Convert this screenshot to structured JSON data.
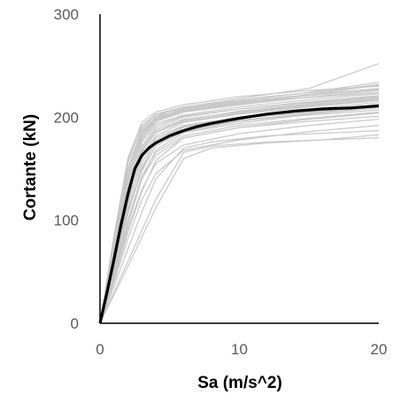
{
  "chart_data": {
    "type": "line",
    "title": "",
    "xlabel": "Sa (m/s^2)",
    "ylabel": "Cortante (kN)",
    "xlim": [
      0,
      20
    ],
    "ylim": [
      0,
      300
    ],
    "xticks": [
      "0",
      "10",
      "20"
    ],
    "yticks": [
      "0",
      "100",
      "200",
      "300"
    ],
    "grid": false,
    "legend": "none",
    "colors": {
      "mean": "#000000",
      "records": "#c8c8c8",
      "axis": "#000000",
      "tick_text": "#595959"
    },
    "series": [
      {
        "role": "mean",
        "x": [
          0,
          0.5,
          1,
          1.5,
          2,
          2.5,
          3,
          3.5,
          4,
          5,
          6,
          7,
          8,
          10,
          12,
          14,
          16,
          18,
          19,
          20
        ],
        "y": [
          0,
          30,
          62,
          95,
          125,
          150,
          163,
          170,
          175,
          182,
          187,
          191,
          194,
          199,
          203,
          206,
          208,
          209,
          210,
          211
        ]
      },
      {
        "role": "record",
        "x": [
          0,
          1,
          2,
          3,
          4,
          5,
          8,
          12,
          16,
          20
        ],
        "y": [
          0,
          75,
          145,
          185,
          200,
          206,
          213,
          220,
          225,
          232
        ]
      },
      {
        "role": "record",
        "x": [
          0,
          1,
          2,
          3,
          4,
          6,
          10,
          14,
          20
        ],
        "y": [
          0,
          70,
          138,
          180,
          196,
          205,
          212,
          218,
          226
        ]
      },
      {
        "role": "record",
        "x": [
          0,
          1,
          2,
          3,
          4,
          6,
          10,
          15,
          20
        ],
        "y": [
          0,
          80,
          155,
          192,
          203,
          210,
          218,
          228,
          252
        ]
      },
      {
        "role": "record",
        "x": [
          0,
          1,
          2,
          3,
          4,
          6,
          10,
          15,
          20
        ],
        "y": [
          0,
          65,
          130,
          172,
          190,
          200,
          208,
          214,
          220
        ]
      },
      {
        "role": "record",
        "x": [
          0,
          1,
          2,
          3,
          4,
          6,
          10,
          15,
          20
        ],
        "y": [
          0,
          60,
          120,
          160,
          180,
          192,
          200,
          208,
          214
        ]
      },
      {
        "role": "record",
        "x": [
          0,
          1,
          2,
          3,
          4,
          6,
          10,
          15,
          20
        ],
        "y": [
          0,
          55,
          110,
          150,
          172,
          186,
          196,
          203,
          209
        ]
      },
      {
        "role": "record",
        "x": [
          0,
          1,
          2,
          3,
          4,
          6,
          10,
          15,
          20
        ],
        "y": [
          0,
          50,
          100,
          140,
          163,
          180,
          190,
          198,
          204
        ]
      },
      {
        "role": "record",
        "x": [
          0,
          1,
          2,
          3,
          4,
          6,
          10,
          15,
          20
        ],
        "y": [
          0,
          45,
          92,
          130,
          155,
          173,
          184,
          192,
          198
        ]
      },
      {
        "role": "record",
        "x": [
          0,
          1,
          2,
          3,
          4,
          6,
          10,
          15,
          20
        ],
        "y": [
          0,
          40,
          82,
          120,
          145,
          168,
          178,
          186,
          192
        ]
      },
      {
        "role": "record",
        "x": [
          0,
          1,
          2,
          3,
          4,
          6,
          8,
          12,
          20
        ],
        "y": [
          0,
          36,
          72,
          108,
          140,
          170,
          176,
          182,
          187
        ]
      },
      {
        "role": "record",
        "x": [
          0,
          2,
          4,
          6,
          8,
          12,
          20
        ],
        "y": [
          0,
          60,
          120,
          166,
          172,
          176,
          180
        ]
      },
      {
        "role": "record",
        "x": [
          0,
          2,
          4,
          6,
          8,
          12,
          16,
          20
        ],
        "y": [
          0,
          55,
          112,
          160,
          170,
          175,
          178,
          183
        ]
      },
      {
        "role": "record",
        "x": [
          0,
          1,
          2,
          3,
          4,
          6,
          10,
          15,
          20
        ],
        "y": [
          0,
          85,
          160,
          195,
          205,
          212,
          220,
          226,
          230
        ]
      },
      {
        "role": "record",
        "x": [
          0,
          1,
          2,
          3,
          4,
          6,
          10,
          15,
          20
        ],
        "y": [
          0,
          78,
          150,
          188,
          200,
          208,
          215,
          222,
          228
        ]
      },
      {
        "role": "record",
        "x": [
          0,
          1,
          2,
          3,
          4,
          6,
          10,
          15,
          20
        ],
        "y": [
          0,
          72,
          142,
          178,
          194,
          202,
          210,
          217,
          223
        ]
      },
      {
        "role": "record",
        "x": [
          0,
          1,
          2,
          3,
          4,
          6,
          10,
          15,
          20
        ],
        "y": [
          0,
          66,
          132,
          170,
          188,
          198,
          205,
          212,
          218
        ]
      },
      {
        "role": "record",
        "x": [
          0,
          1,
          2,
          3,
          4,
          6,
          10,
          15,
          20
        ],
        "y": [
          0,
          58,
          118,
          162,
          182,
          195,
          203,
          210,
          216
        ]
      },
      {
        "role": "record",
        "x": [
          0,
          1,
          2,
          3,
          4,
          6,
          10,
          15,
          20
        ],
        "y": [
          0,
          52,
          106,
          152,
          176,
          190,
          199,
          205,
          211
        ]
      },
      {
        "role": "record",
        "x": [
          0,
          1,
          2,
          3,
          4,
          6,
          10,
          14,
          20
        ],
        "y": [
          0,
          47,
          96,
          140,
          168,
          185,
          194,
          201,
          207
        ]
      },
      {
        "role": "record",
        "x": [
          0,
          1,
          2,
          3,
          4,
          6,
          10,
          15,
          20
        ],
        "y": [
          0,
          42,
          88,
          128,
          158,
          180,
          190,
          196,
          201
        ]
      },
      {
        "role": "record",
        "x": [
          0,
          1,
          2,
          3,
          4,
          6,
          10,
          15,
          20
        ],
        "y": [
          0,
          82,
          158,
          190,
          202,
          209,
          216,
          224,
          234
        ]
      },
      {
        "role": "record",
        "x": [
          0,
          1,
          2,
          3,
          4,
          6,
          10,
          15,
          20
        ],
        "y": [
          0,
          74,
          146,
          184,
          198,
          206,
          213,
          221,
          227
        ]
      },
      {
        "role": "record",
        "x": [
          0,
          1,
          2,
          3,
          4,
          6,
          10,
          15,
          20
        ],
        "y": [
          0,
          68,
          134,
          176,
          192,
          201,
          208,
          215,
          221
        ]
      },
      {
        "role": "record",
        "x": [
          0,
          1,
          2,
          3,
          4,
          6,
          10,
          15,
          20
        ],
        "y": [
          0,
          62,
          124,
          166,
          185,
          196,
          204,
          211,
          217
        ]
      },
      {
        "role": "record",
        "x": [
          0,
          1,
          2,
          3,
          4,
          6,
          10,
          15,
          20
        ],
        "y": [
          0,
          57,
          114,
          156,
          178,
          191,
          200,
          206,
          212
        ]
      },
      {
        "role": "record",
        "x": [
          0,
          1,
          2,
          3,
          4,
          6,
          10,
          15,
          20
        ],
        "y": [
          0,
          76,
          148,
          186,
          199,
          207,
          214,
          219,
          224
        ]
      },
      {
        "role": "record",
        "x": [
          0,
          1,
          2,
          3,
          4,
          6,
          10,
          15,
          20
        ],
        "y": [
          0,
          64,
          128,
          168,
          186,
          197,
          206,
          213,
          219
        ]
      },
      {
        "role": "record",
        "x": [
          0,
          1,
          2,
          3,
          4,
          6,
          10,
          15,
          20
        ],
        "y": [
          0,
          53,
          108,
          148,
          172,
          187,
          197,
          204,
          210
        ]
      },
      {
        "role": "record",
        "x": [
          0,
          1,
          2,
          3,
          4,
          6,
          10,
          15,
          20
        ],
        "y": [
          0,
          70,
          140,
          182,
          197,
          205,
          214,
          222,
          231
        ]
      },
      {
        "role": "record",
        "x": [
          0,
          1,
          2,
          3,
          4,
          6,
          10,
          15,
          20
        ],
        "y": [
          0,
          49,
          100,
          143,
          166,
          182,
          192,
          199,
          205
        ]
      }
    ]
  }
}
